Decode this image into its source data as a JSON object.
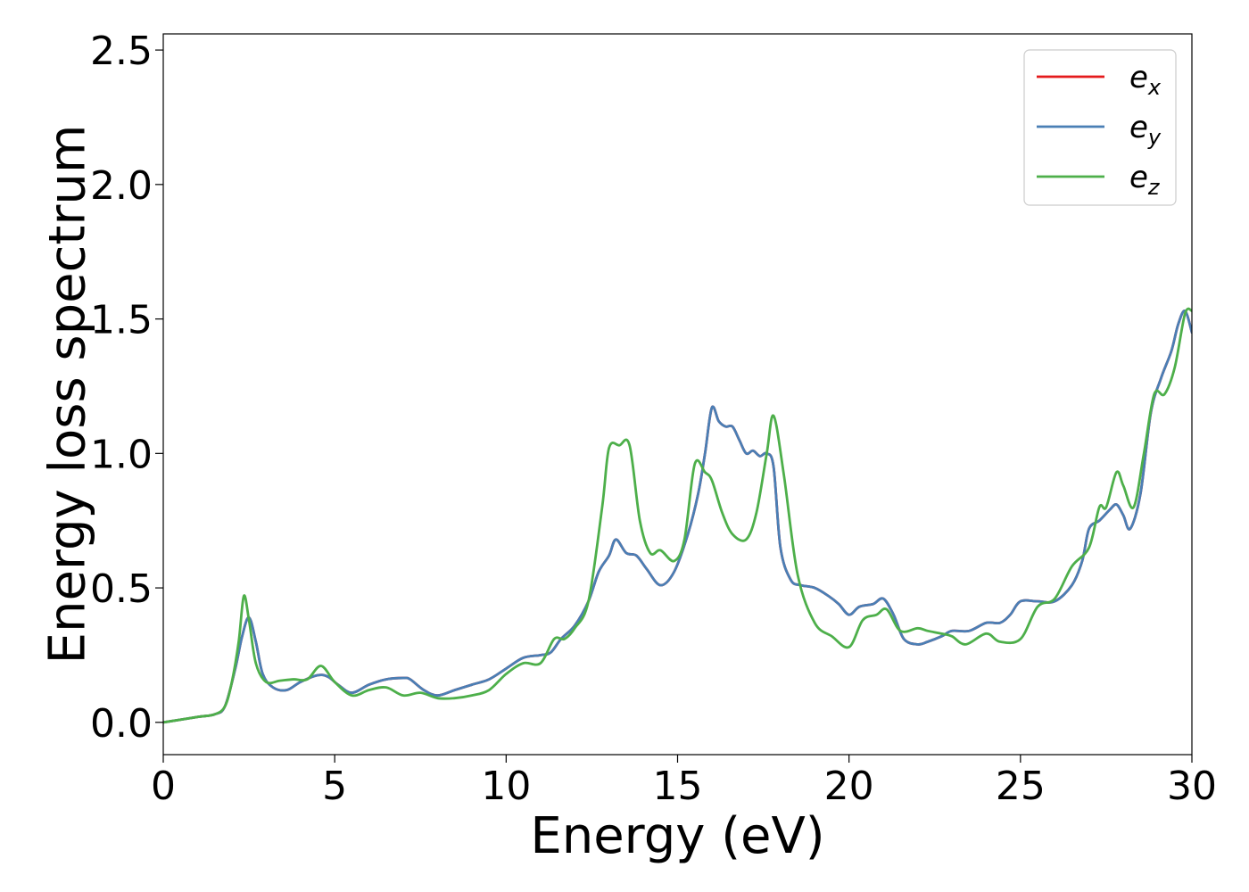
{
  "chart_data": {
    "type": "line",
    "title": "",
    "xlabel": "Energy (eV)",
    "ylabel": "Energy loss spectrum",
    "xlim": [
      0,
      30
    ],
    "ylim": [
      -0.12,
      2.56
    ],
    "xticks": [
      0,
      5,
      10,
      15,
      20,
      25,
      30
    ],
    "xtick_labels": [
      "0",
      "5",
      "10",
      "15",
      "20",
      "25",
      "30"
    ],
    "yticks": [
      0.0,
      0.5,
      1.0,
      1.5,
      2.0,
      2.5
    ],
    "ytick_labels": [
      "0.0",
      "0.5",
      "1.0",
      "1.5",
      "2.0",
      "2.5"
    ],
    "grid": false,
    "legend_position": "top-right",
    "series": [
      {
        "name": "e_x",
        "label_base": "e",
        "label_sub": "x",
        "color": "#e41a1c",
        "x": [
          0,
          1,
          1.5,
          1.8,
          2.1,
          2.3,
          2.5,
          2.7,
          2.9,
          3.2,
          3.6,
          4.0,
          4.5,
          4.8,
          5.1,
          5.5,
          6.0,
          6.5,
          7.0,
          7.2,
          7.6,
          8.0,
          8.5,
          9.0,
          9.5,
          10.0,
          10.5,
          11.0,
          11.3,
          11.6,
          12.0,
          12.4,
          12.7,
          13.0,
          13.2,
          13.5,
          13.8,
          14.1,
          14.5,
          14.9,
          15.3,
          15.6,
          15.8,
          16.0,
          16.2,
          16.4,
          16.6,
          16.8,
          17.0,
          17.2,
          17.4,
          17.6,
          17.8,
          18.0,
          18.3,
          18.6,
          19.0,
          19.4,
          19.7,
          20.0,
          20.3,
          20.7,
          21.0,
          21.3,
          21.6,
          22.0,
          22.3,
          22.7,
          23.0,
          23.5,
          24.0,
          24.4,
          24.7,
          25.0,
          25.5,
          26.0,
          26.5,
          26.8,
          27.0,
          27.3,
          27.6,
          27.8,
          28.0,
          28.2,
          28.5,
          28.8,
          29.1,
          29.4,
          29.6,
          29.8,
          30.0
        ],
        "y": [
          0.0,
          0.02,
          0.03,
          0.06,
          0.2,
          0.32,
          0.39,
          0.3,
          0.18,
          0.13,
          0.12,
          0.15,
          0.175,
          0.17,
          0.14,
          0.11,
          0.14,
          0.16,
          0.165,
          0.16,
          0.12,
          0.1,
          0.12,
          0.14,
          0.16,
          0.2,
          0.24,
          0.25,
          0.26,
          0.31,
          0.36,
          0.45,
          0.56,
          0.62,
          0.68,
          0.63,
          0.62,
          0.57,
          0.51,
          0.56,
          0.7,
          0.85,
          1.0,
          1.17,
          1.12,
          1.1,
          1.1,
          1.05,
          1.0,
          1.01,
          0.99,
          1.0,
          0.95,
          0.65,
          0.53,
          0.51,
          0.5,
          0.47,
          0.44,
          0.4,
          0.43,
          0.44,
          0.46,
          0.4,
          0.31,
          0.29,
          0.3,
          0.32,
          0.34,
          0.34,
          0.37,
          0.37,
          0.4,
          0.45,
          0.45,
          0.45,
          0.51,
          0.6,
          0.72,
          0.75,
          0.79,
          0.81,
          0.77,
          0.72,
          0.85,
          1.15,
          1.28,
          1.38,
          1.48,
          1.53,
          1.45
        ]
      },
      {
        "name": "e_y",
        "label_base": "e",
        "label_sub": "y",
        "color": "#4a7fb5",
        "x": [
          0,
          1,
          1.5,
          1.8,
          2.1,
          2.3,
          2.5,
          2.7,
          2.9,
          3.2,
          3.6,
          4.0,
          4.5,
          4.8,
          5.1,
          5.5,
          6.0,
          6.5,
          7.0,
          7.2,
          7.6,
          8.0,
          8.5,
          9.0,
          9.5,
          10.0,
          10.5,
          11.0,
          11.3,
          11.6,
          12.0,
          12.4,
          12.7,
          13.0,
          13.2,
          13.5,
          13.8,
          14.1,
          14.5,
          14.9,
          15.3,
          15.6,
          15.8,
          16.0,
          16.2,
          16.4,
          16.6,
          16.8,
          17.0,
          17.2,
          17.4,
          17.6,
          17.8,
          18.0,
          18.3,
          18.6,
          19.0,
          19.4,
          19.7,
          20.0,
          20.3,
          20.7,
          21.0,
          21.3,
          21.6,
          22.0,
          22.3,
          22.7,
          23.0,
          23.5,
          24.0,
          24.4,
          24.7,
          25.0,
          25.5,
          26.0,
          26.5,
          26.8,
          27.0,
          27.3,
          27.6,
          27.8,
          28.0,
          28.2,
          28.5,
          28.8,
          29.1,
          29.4,
          29.6,
          29.8,
          30.0
        ],
        "y": [
          0.0,
          0.02,
          0.03,
          0.06,
          0.2,
          0.32,
          0.39,
          0.3,
          0.18,
          0.13,
          0.12,
          0.15,
          0.175,
          0.17,
          0.14,
          0.11,
          0.14,
          0.16,
          0.165,
          0.16,
          0.12,
          0.1,
          0.12,
          0.14,
          0.16,
          0.2,
          0.24,
          0.25,
          0.26,
          0.31,
          0.36,
          0.45,
          0.56,
          0.62,
          0.68,
          0.63,
          0.62,
          0.57,
          0.51,
          0.56,
          0.7,
          0.85,
          1.0,
          1.17,
          1.12,
          1.1,
          1.1,
          1.05,
          1.0,
          1.01,
          0.99,
          1.0,
          0.95,
          0.65,
          0.53,
          0.51,
          0.5,
          0.47,
          0.44,
          0.4,
          0.43,
          0.44,
          0.46,
          0.4,
          0.31,
          0.29,
          0.3,
          0.32,
          0.34,
          0.34,
          0.37,
          0.37,
          0.4,
          0.45,
          0.45,
          0.45,
          0.51,
          0.6,
          0.72,
          0.75,
          0.79,
          0.81,
          0.77,
          0.72,
          0.85,
          1.15,
          1.28,
          1.38,
          1.48,
          1.53,
          1.45
        ]
      },
      {
        "name": "e_z",
        "label_base": "e",
        "label_sub": "z",
        "color": "#4daf4a",
        "x": [
          0,
          1,
          1.5,
          1.8,
          2.0,
          2.2,
          2.35,
          2.5,
          2.7,
          3.0,
          3.4,
          3.8,
          4.2,
          4.6,
          5.0,
          5.5,
          6.0,
          6.5,
          7.0,
          7.5,
          8.0,
          8.5,
          9.0,
          9.5,
          10.0,
          10.5,
          11.0,
          11.4,
          11.7,
          12.0,
          12.4,
          12.8,
          13.0,
          13.3,
          13.6,
          13.9,
          14.2,
          14.5,
          14.9,
          15.2,
          15.5,
          15.8,
          16.0,
          16.3,
          16.6,
          17.0,
          17.3,
          17.6,
          17.8,
          18.1,
          18.5,
          19.0,
          19.5,
          20.0,
          20.4,
          20.8,
          21.1,
          21.5,
          22.0,
          22.3,
          22.7,
          23.0,
          23.4,
          24.0,
          24.4,
          25.0,
          25.5,
          26.0,
          26.5,
          27.0,
          27.3,
          27.5,
          27.8,
          28.0,
          28.3,
          28.6,
          28.9,
          29.2,
          29.5,
          29.8,
          30.0
        ],
        "y": [
          0.0,
          0.02,
          0.03,
          0.06,
          0.15,
          0.3,
          0.47,
          0.38,
          0.22,
          0.15,
          0.155,
          0.16,
          0.16,
          0.21,
          0.15,
          0.1,
          0.12,
          0.13,
          0.1,
          0.11,
          0.09,
          0.09,
          0.1,
          0.12,
          0.18,
          0.22,
          0.22,
          0.31,
          0.31,
          0.35,
          0.45,
          0.8,
          1.02,
          1.03,
          1.03,
          0.75,
          0.63,
          0.64,
          0.6,
          0.68,
          0.96,
          0.93,
          0.9,
          0.78,
          0.7,
          0.68,
          0.78,
          1.0,
          1.14,
          0.92,
          0.55,
          0.37,
          0.32,
          0.28,
          0.38,
          0.4,
          0.42,
          0.34,
          0.35,
          0.34,
          0.33,
          0.32,
          0.29,
          0.33,
          0.3,
          0.31,
          0.43,
          0.46,
          0.58,
          0.65,
          0.8,
          0.8,
          0.93,
          0.88,
          0.8,
          1.0,
          1.22,
          1.22,
          1.32,
          1.52,
          1.53
        ]
      }
    ]
  }
}
